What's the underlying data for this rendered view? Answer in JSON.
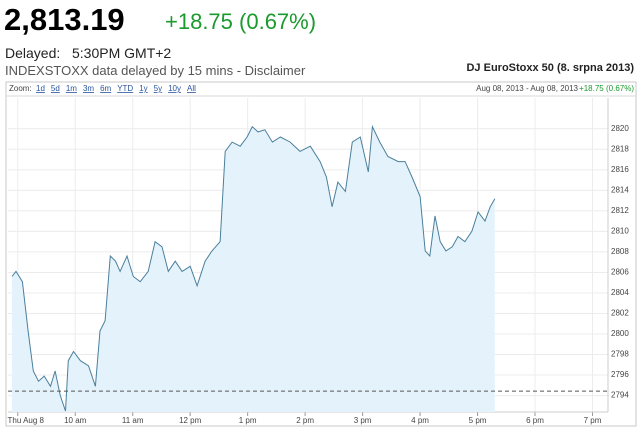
{
  "header": {
    "price": "2,813.19",
    "change": "+18.75 (0.67%)",
    "delayed_label": "Delayed:",
    "delayed_time": "5:30PM GMT+2",
    "note": "INDEXSTOXX data delayed by 15 mins - Disclaimer"
  },
  "toolbar": {
    "zoom_label": "Zoom:",
    "zoom_options": [
      "1d",
      "5d",
      "1m",
      "3m",
      "6m",
      "YTD",
      "1y",
      "5y",
      "10y",
      "All"
    ],
    "date_range": "Aug 08, 2013 - Aug 08, 2013",
    "change": "+18.75 (0.67%)"
  },
  "chart_data": {
    "type": "area",
    "title": "DJ EuroStoxx 50 (8. srpna 2013)",
    "x": [
      8.9,
      8.97,
      9.08,
      9.18,
      9.27,
      9.36,
      9.46,
      9.57,
      9.65,
      9.74,
      9.83,
      9.88,
      9.97,
      10.09,
      10.23,
      10.35,
      10.43,
      10.52,
      10.61,
      10.7,
      10.78,
      10.9,
      11.01,
      11.13,
      11.27,
      11.39,
      11.51,
      11.62,
      11.74,
      11.86,
      12.0,
      12.12,
      12.26,
      12.38,
      12.52,
      12.61,
      12.73,
      12.87,
      12.99,
      13.08,
      13.18,
      13.3,
      13.43,
      13.57,
      13.74,
      13.91,
      14.09,
      14.26,
      14.37,
      14.47,
      14.57,
      14.7,
      14.82,
      14.96,
      15.1,
      15.17,
      15.3,
      15.44,
      15.62,
      15.74,
      15.86,
      16.0,
      16.09,
      16.17,
      16.26,
      16.35,
      16.45,
      16.56,
      16.66,
      16.78,
      16.9,
      17.01,
      17.13,
      17.22,
      17.3
    ],
    "series": [
      {
        "color": "#4a7f9c",
        "fill": "#e4f3fb",
        "values": [
          2805.6,
          2806.1,
          2805.1,
          2800.3,
          2796.4,
          2795.4,
          2795.9,
          2794.9,
          2796.4,
          2794.0,
          2792.5,
          2797.4,
          2798.3,
          2797.4,
          2796.9,
          2794.9,
          2800.3,
          2801.3,
          2807.6,
          2807.1,
          2806.1,
          2807.6,
          2805.6,
          2805.1,
          2806.1,
          2809.0,
          2808.5,
          2806.1,
          2807.1,
          2806.1,
          2806.6,
          2804.7,
          2807.1,
          2808.1,
          2809.0,
          2817.8,
          2818.7,
          2818.3,
          2819.2,
          2820.2,
          2819.7,
          2819.9,
          2818.7,
          2819.2,
          2818.7,
          2817.8,
          2818.3,
          2816.8,
          2815.3,
          2812.4,
          2814.8,
          2813.9,
          2818.7,
          2819.2,
          2815.8,
          2820.2,
          2818.7,
          2817.3,
          2816.8,
          2816.8,
          2815.3,
          2813.4,
          2808.1,
          2807.6,
          2811.5,
          2809.0,
          2808.1,
          2808.5,
          2809.5,
          2809.0,
          2810.0,
          2811.9,
          2811.0,
          2812.4,
          2813.19
        ]
      }
    ],
    "reference_line": 2794.44,
    "xlim": [
      8.83,
      19.27
    ],
    "ylim": [
      2792.4,
      2823
    ],
    "xticks": [
      {
        "value": 9,
        "label": "Thu Aug 8"
      },
      {
        "value": 10,
        "label": "10 am"
      },
      {
        "value": 11,
        "label": "11 am"
      },
      {
        "value": 12,
        "label": "12 pm"
      },
      {
        "value": 13,
        "label": "1 pm"
      },
      {
        "value": 14,
        "label": "2 pm"
      },
      {
        "value": 15,
        "label": "3 pm"
      },
      {
        "value": 16,
        "label": "4 pm"
      },
      {
        "value": 17,
        "label": "5 pm"
      },
      {
        "value": 18,
        "label": "6 pm"
      },
      {
        "value": 19,
        "label": "7 pm"
      }
    ],
    "yticks": [
      2794,
      2796,
      2798,
      2800,
      2802,
      2804,
      2806,
      2808,
      2810,
      2812,
      2814,
      2816,
      2818,
      2820
    ],
    "grid": true
  }
}
